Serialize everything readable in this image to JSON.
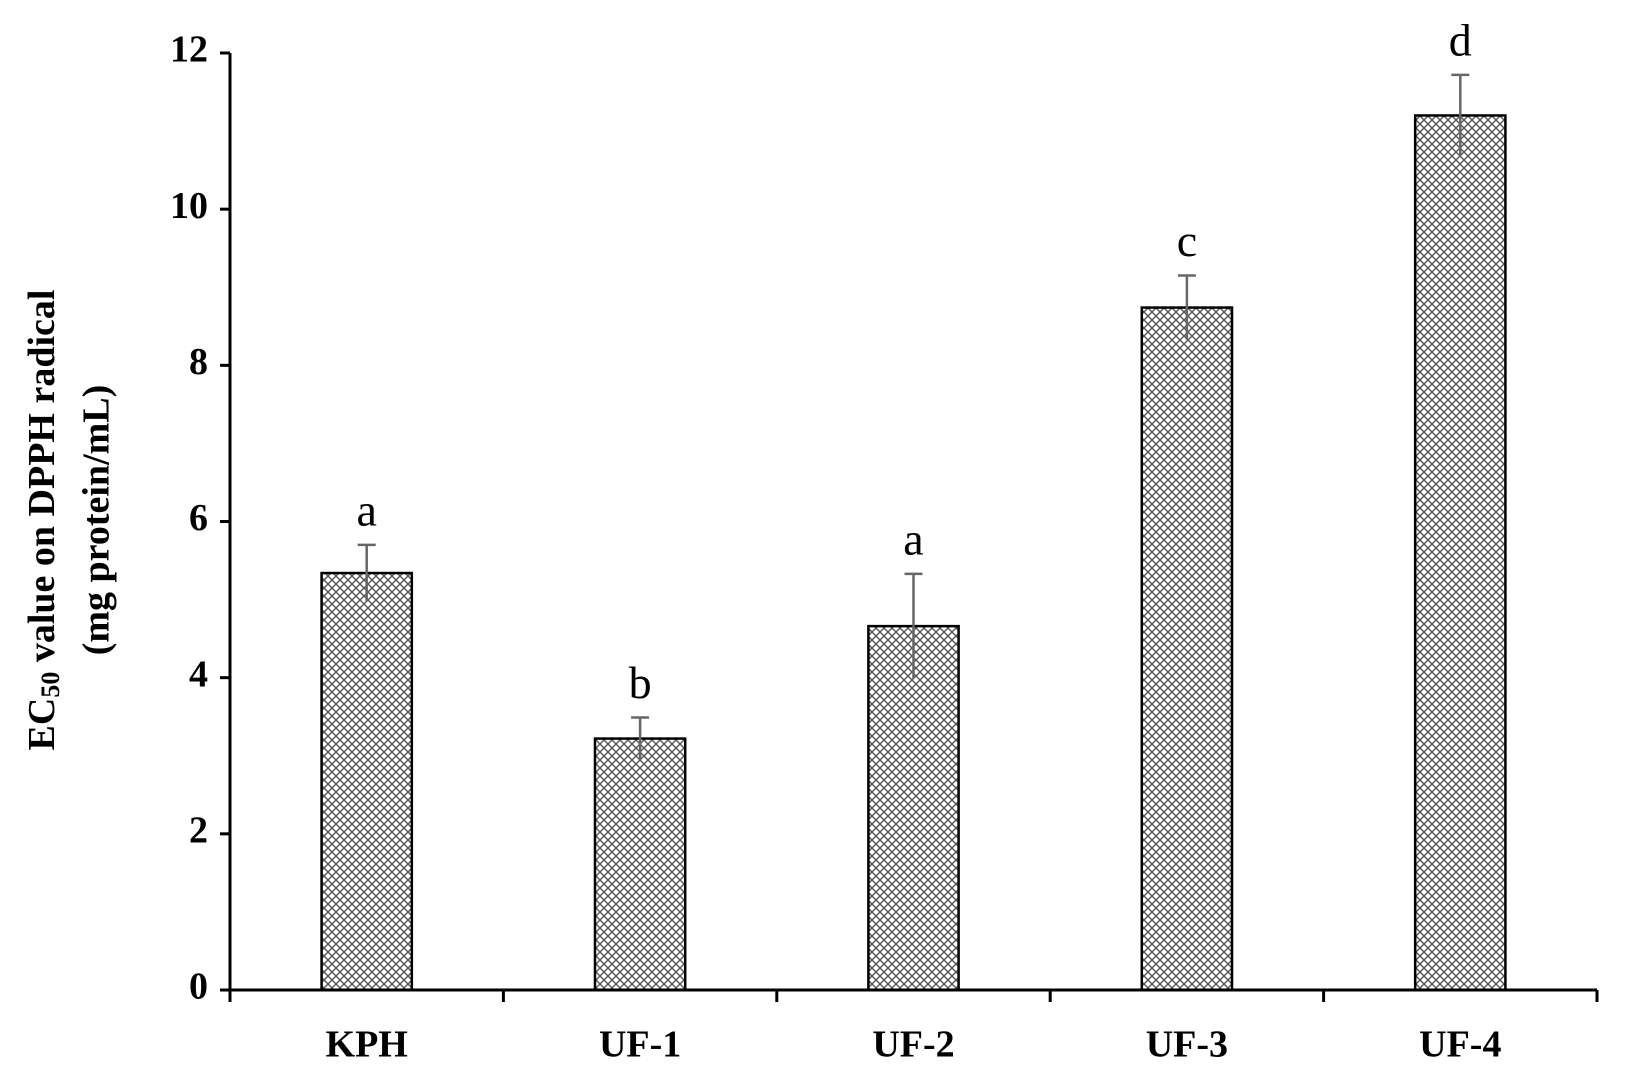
{
  "chart_data": {
    "type": "bar",
    "y_label": {
      "line1": {
        "main": "EC",
        "sub": "50",
        "rest": " value on DPPH radical"
      },
      "line2": "(mg protein/mL)"
    },
    "categories": [
      "KPH",
      "UF-1",
      "UF-2",
      "UF-3",
      "UF-4"
    ],
    "values": [
      5.34,
      3.22,
      4.66,
      8.74,
      11.2
    ],
    "errors": [
      0.36,
      0.27,
      0.67,
      0.41,
      0.52
    ],
    "annotations": [
      "a",
      "b",
      "a",
      "c",
      "d"
    ],
    "color": "#555555",
    "ylim": [
      0,
      12
    ],
    "yticks": [
      0,
      2,
      4,
      6,
      8,
      10,
      12
    ],
    "grid": false
  }
}
